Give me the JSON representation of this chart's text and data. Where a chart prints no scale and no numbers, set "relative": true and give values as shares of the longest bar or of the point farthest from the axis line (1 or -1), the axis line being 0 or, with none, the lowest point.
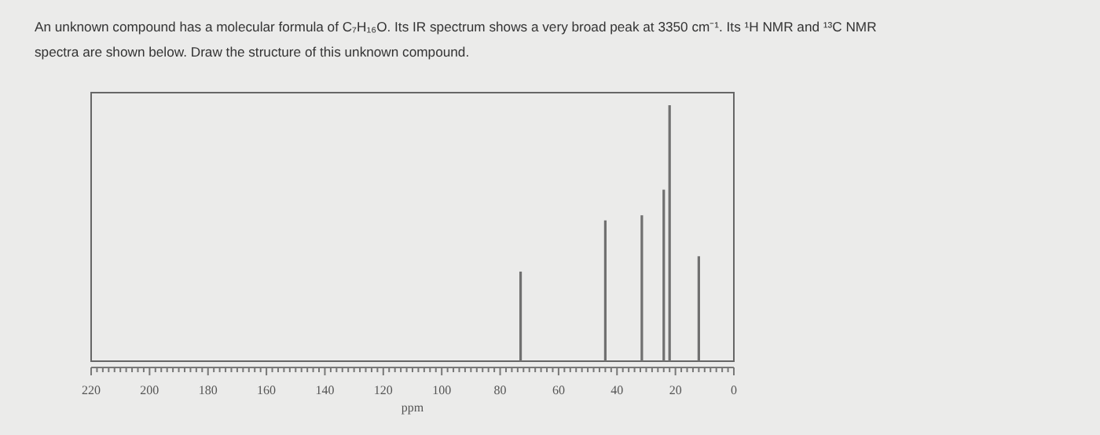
{
  "chart_data": {
    "type": "bar",
    "title": "An unknown compound has a molecular formula of C₇H₁₆O. Its IR spectrum shows a very broad peak at 3350 cm⁻¹. Its ¹H NMR and ¹³C NMR spectra are shown below. Draw the structure of this unknown compound.",
    "xlabel": "ppm",
    "relative": true,
    "x": [
      73,
      44,
      31.5,
      24,
      22,
      12
    ],
    "values": [
      0.35,
      0.55,
      0.57,
      0.67,
      1,
      0.41
    ],
    "color": "#707070",
    "xlim": [
      220,
      0
    ],
    "xticks": [
      220,
      200,
      180,
      160,
      140,
      120,
      100,
      80,
      60,
      40,
      20,
      0,
      {
        "value": 218,
        "label": null
      },
      {
        "value": 216,
        "label": null
      },
      {
        "value": 214,
        "label": null
      },
      {
        "value": 212,
        "label": null
      },
      {
        "value": 210,
        "label": null
      },
      {
        "value": 208,
        "label": null
      },
      {
        "value": 206,
        "label": null
      },
      {
        "value": 204,
        "label": null
      },
      {
        "value": 202,
        "label": null
      },
      {
        "value": 198,
        "label": null
      },
      {
        "value": 196,
        "label": null
      },
      {
        "value": 194,
        "label": null
      },
      {
        "value": 192,
        "label": null
      },
      {
        "value": 190,
        "label": null
      },
      {
        "value": 188,
        "label": null
      },
      {
        "value": 186,
        "label": null
      },
      {
        "value": 184,
        "label": null
      },
      {
        "value": 182,
        "label": null
      },
      {
        "value": 178,
        "label": null
      },
      {
        "value": 176,
        "label": null
      },
      {
        "value": 174,
        "label": null
      },
      {
        "value": 172,
        "label": null
      },
      {
        "value": 170,
        "label": null
      },
      {
        "value": 168,
        "label": null
      },
      {
        "value": 166,
        "label": null
      },
      {
        "value": 164,
        "label": null
      },
      {
        "value": 162,
        "label": null
      },
      {
        "value": 158,
        "label": null
      },
      {
        "value": 156,
        "label": null
      },
      {
        "value": 154,
        "label": null
      },
      {
        "value": 152,
        "label": null
      },
      {
        "value": 150,
        "label": null
      },
      {
        "value": 148,
        "label": null
      },
      {
        "value": 146,
        "label": null
      },
      {
        "value": 144,
        "label": null
      },
      {
        "value": 142,
        "label": null
      },
      {
        "value": 138,
        "label": null
      },
      {
        "value": 136,
        "label": null
      },
      {
        "value": 134,
        "label": null
      },
      {
        "value": 132,
        "label": null
      },
      {
        "value": 130,
        "label": null
      },
      {
        "value": 128,
        "label": null
      },
      {
        "value": 126,
        "label": null
      },
      {
        "value": 124,
        "label": null
      },
      {
        "value": 122,
        "label": null
      },
      {
        "value": 118,
        "label": null
      },
      {
        "value": 116,
        "label": null
      },
      {
        "value": 114,
        "label": null
      },
      {
        "value": 112,
        "label": null
      },
      {
        "value": 110,
        "label": null
      },
      {
        "value": 108,
        "label": null
      },
      {
        "value": 106,
        "label": null
      },
      {
        "value": 104,
        "label": null
      },
      {
        "value": 102,
        "label": null
      },
      {
        "value": 98,
        "label": null
      },
      {
        "value": 96,
        "label": null
      },
      {
        "value": 94,
        "label": null
      },
      {
        "value": 92,
        "label": null
      },
      {
        "value": 90,
        "label": null
      },
      {
        "value": 88,
        "label": null
      },
      {
        "value": 86,
        "label": null
      },
      {
        "value": 84,
        "label": null
      },
      {
        "value": 82,
        "label": null
      },
      {
        "value": 78,
        "label": null
      },
      {
        "value": 76,
        "label": null
      },
      {
        "value": 74,
        "label": null
      },
      {
        "value": 72,
        "label": null
      },
      {
        "value": 70,
        "label": null
      },
      {
        "value": 68,
        "label": null
      },
      {
        "value": 66,
        "label": null
      },
      {
        "value": 64,
        "label": null
      },
      {
        "value": 62,
        "label": null
      },
      {
        "value": 58,
        "label": null
      },
      {
        "value": 56,
        "label": null
      },
      {
        "value": 54,
        "label": null
      },
      {
        "value": 52,
        "label": null
      },
      {
        "value": 50,
        "label": null
      },
      {
        "value": 48,
        "label": null
      },
      {
        "value": 46,
        "label": null
      },
      {
        "value": 44,
        "label": null
      },
      {
        "value": 42,
        "label": null
      },
      {
        "value": 38,
        "label": null
      },
      {
        "value": 36,
        "label": null
      },
      {
        "value": 34,
        "label": null
      },
      {
        "value": 32,
        "label": null
      },
      {
        "value": 30,
        "label": null
      },
      {
        "value": 28,
        "label": null
      },
      {
        "value": 26,
        "label": null
      },
      {
        "value": 24,
        "label": null
      },
      {
        "value": 22,
        "label": null
      },
      {
        "value": 18,
        "label": null
      },
      {
        "value": 16,
        "label": null
      },
      {
        "value": 14,
        "label": null
      },
      {
        "value": 12,
        "label": null
      },
      {
        "value": 10,
        "label": null
      },
      {
        "value": 8,
        "label": null
      },
      {
        "value": 6,
        "label": null
      },
      {
        "value": 4,
        "label": null
      },
      {
        "value": 2,
        "label": null
      }
    ]
  }
}
